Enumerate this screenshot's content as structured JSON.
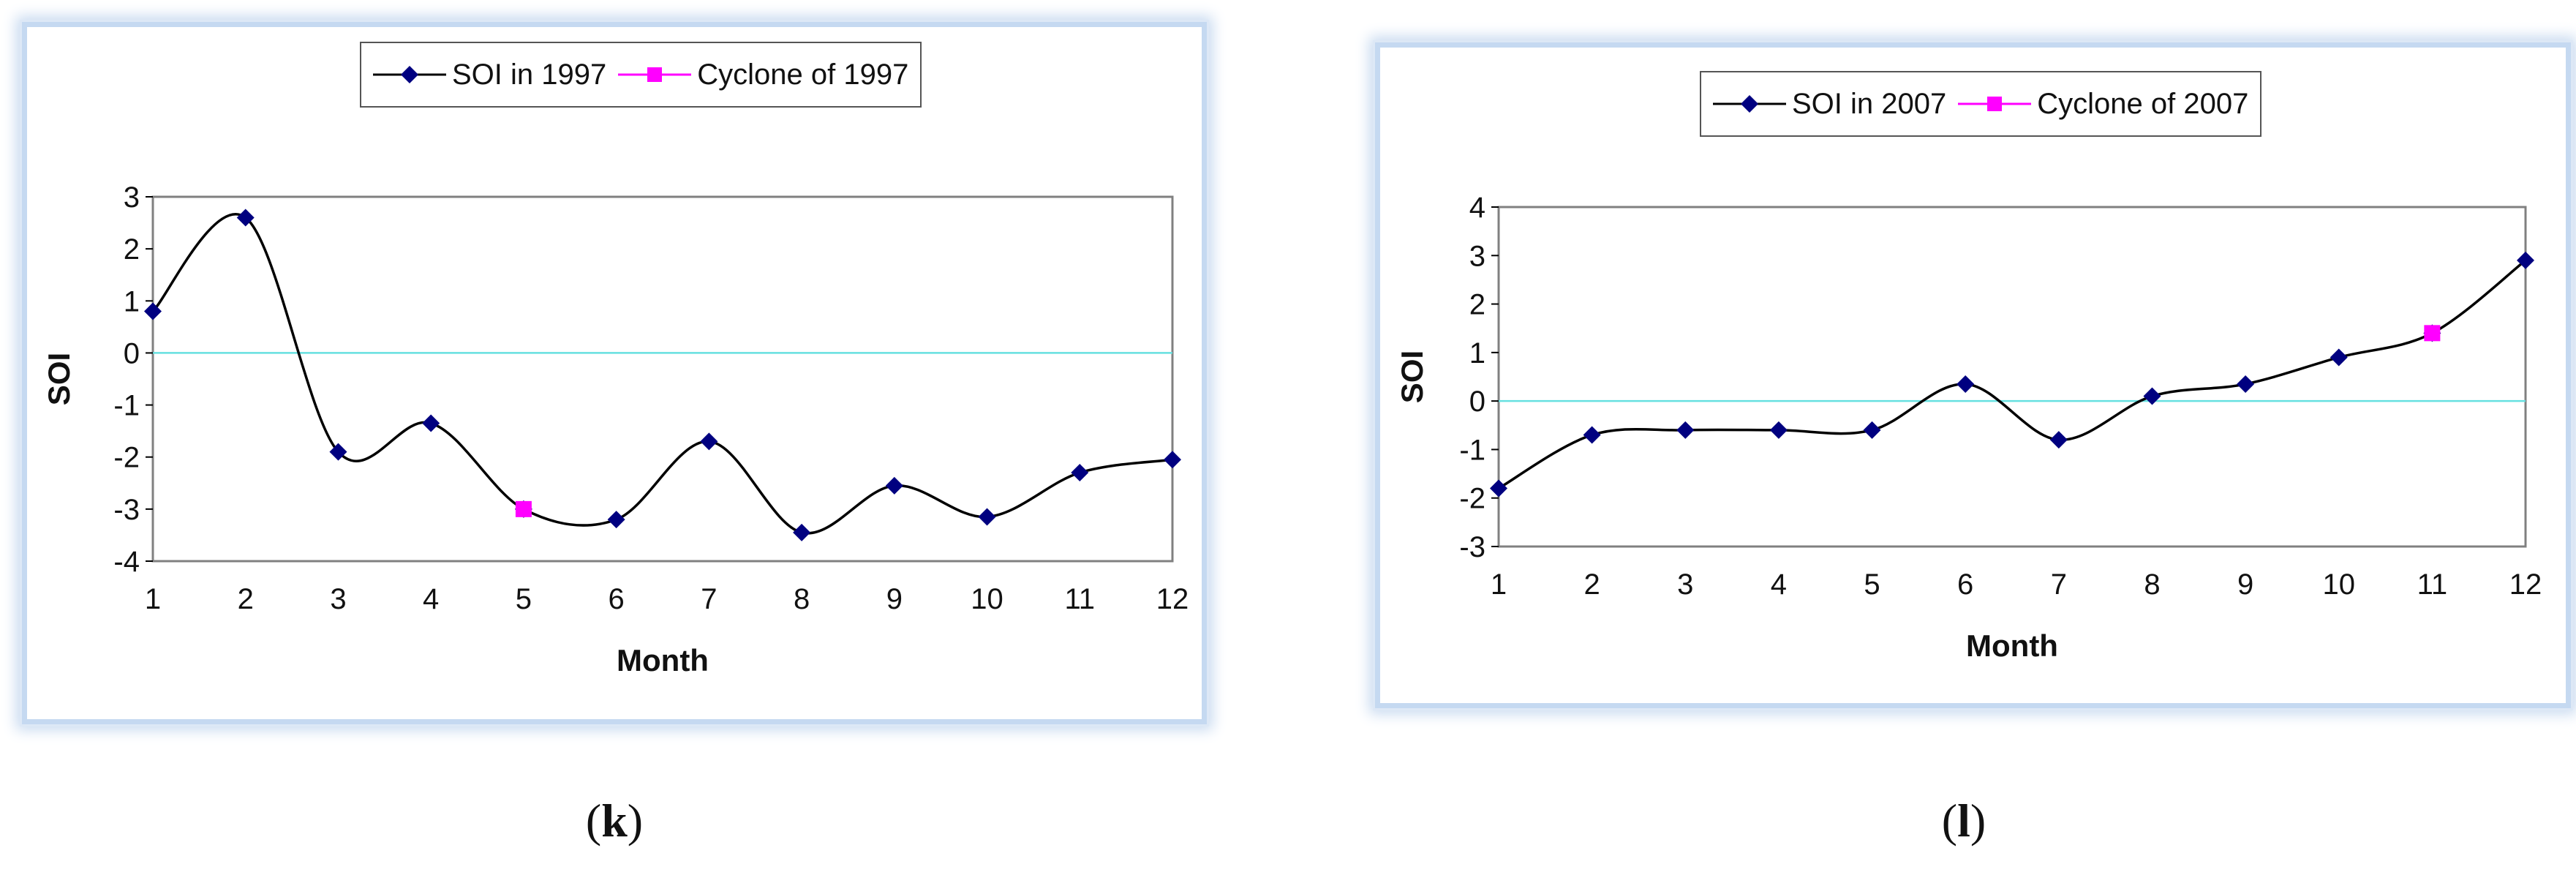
{
  "colors": {
    "series": "#000080",
    "line": "#000000",
    "cyclone": "#ff00ff",
    "zero_line": "#66e0e0",
    "plot_border": "#808080",
    "panel_border": "#c5d9f1"
  },
  "chart_data": [
    {
      "type": "line",
      "panel_label": "k",
      "xlabel": "Month",
      "ylabel": "SOI",
      "x": [
        1,
        2,
        3,
        4,
        5,
        6,
        7,
        8,
        9,
        10,
        11,
        12
      ],
      "xlim": [
        1,
        12
      ],
      "ylim": [
        -4,
        3
      ],
      "yticks": [
        3,
        2,
        1,
        0,
        -1,
        -2,
        -3,
        -4
      ],
      "legend_position": "top-center",
      "grid": false,
      "series": [
        {
          "name": "SOI in 1997",
          "marker": "diamond",
          "color": "#000080",
          "values": [
            0.8,
            2.6,
            -1.9,
            -1.35,
            -3.0,
            -3.2,
            -1.7,
            -3.45,
            -2.55,
            -3.15,
            -2.3,
            -2.05
          ]
        },
        {
          "name": "Cyclone of 1997",
          "marker": "square",
          "color": "#ff00ff",
          "points": [
            {
              "x": 5,
              "y": -3.0
            }
          ]
        }
      ]
    },
    {
      "type": "line",
      "panel_label": "l",
      "xlabel": "Month",
      "ylabel": "SOI",
      "x": [
        1,
        2,
        3,
        4,
        5,
        6,
        7,
        8,
        9,
        10,
        11,
        12
      ],
      "xlim": [
        1,
        12
      ],
      "ylim": [
        -3,
        4
      ],
      "yticks": [
        4,
        3,
        2,
        1,
        0,
        -1,
        -2,
        -3
      ],
      "legend_position": "top-center",
      "grid": false,
      "series": [
        {
          "name": "SOI in 2007",
          "marker": "diamond",
          "color": "#000080",
          "values": [
            -1.8,
            -0.7,
            -0.6,
            -0.6,
            -0.6,
            0.35,
            -0.8,
            0.1,
            0.35,
            0.9,
            1.4,
            2.9
          ]
        },
        {
          "name": "Cyclone of 2007",
          "marker": "square",
          "color": "#ff00ff",
          "points": [
            {
              "x": 11,
              "y": 1.4
            }
          ]
        }
      ]
    }
  ]
}
